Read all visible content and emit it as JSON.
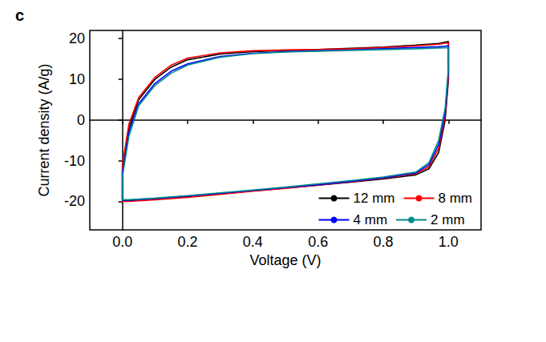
{
  "chart_data": {
    "type": "line",
    "panel_label": "c",
    "x_label": "Voltage (V)",
    "y_label": "Current density (A/g)",
    "xlim": [
      -0.1,
      1.1
    ],
    "xticks": [
      {
        "value": 0,
        "label": "0.0"
      },
      {
        "value": 0.2,
        "label": "0.2"
      },
      {
        "value": 0.4,
        "label": "0.4"
      },
      {
        "value": 0.6,
        "label": "0.6"
      },
      {
        "value": 0.8,
        "label": "0.8"
      },
      {
        "value": 1,
        "label": "1.0"
      }
    ],
    "ylim": [
      -27,
      22
    ],
    "yticks": [
      -20,
      -10,
      0,
      10,
      20
    ],
    "grid": false,
    "legend": "lower right",
    "series": [
      {
        "name": "12 mm",
        "color": "#000000",
        "x": [
          0,
          0.02,
          0.05,
          0.1,
          0.15,
          0.2,
          0.3,
          0.4,
          0.5,
          0.6,
          0.7,
          0.8,
          0.9,
          0.97,
          1,
          1,
          0.99,
          0.97,
          0.94,
          0.9,
          0.8,
          0.7,
          0.6,
          0.5,
          0.4,
          0.3,
          0.2,
          0.1,
          0.02,
          0,
          0
        ],
        "values": [
          -12,
          -2,
          5,
          10,
          13,
          14.8,
          16.2,
          16.8,
          17.1,
          17.3,
          17.6,
          17.9,
          18.4,
          18.8,
          19.3,
          10,
          0,
          -8,
          -12,
          -13.5,
          -14.5,
          -15.3,
          -16,
          -16.7,
          -17.4,
          -18.1,
          -18.8,
          -19.4,
          -19.8,
          -19.8,
          -12
        ]
      },
      {
        "name": "8 mm",
        "color": "#ff0000",
        "x": [
          0,
          0.02,
          0.05,
          0.1,
          0.15,
          0.2,
          0.3,
          0.4,
          0.5,
          0.6,
          0.7,
          0.8,
          0.9,
          0.97,
          1,
          1,
          0.99,
          0.97,
          0.94,
          0.9,
          0.8,
          0.7,
          0.6,
          0.5,
          0.4,
          0.3,
          0.2,
          0.1,
          0.02,
          0,
          0
        ],
        "values": [
          -11,
          -1,
          5.5,
          10.5,
          13.5,
          15.2,
          16.5,
          17,
          17.2,
          17.3,
          17.5,
          17.8,
          18.2,
          18.6,
          19,
          11,
          1,
          -7,
          -11.5,
          -13.2,
          -14.3,
          -15.2,
          -16,
          -16.8,
          -17.5,
          -18.3,
          -19,
          -19.6,
          -20,
          -20,
          -11
        ]
      },
      {
        "name": "4 mm",
        "color": "#0000ff",
        "x": [
          0,
          0.02,
          0.05,
          0.1,
          0.15,
          0.2,
          0.3,
          0.4,
          0.5,
          0.6,
          0.7,
          0.8,
          0.9,
          0.97,
          1,
          1,
          0.99,
          0.97,
          0.94,
          0.9,
          0.8,
          0.7,
          0.6,
          0.5,
          0.4,
          0.3,
          0.2,
          0.1,
          0.02,
          0,
          0
        ],
        "values": [
          -13,
          -3,
          4,
          9,
          12,
          13.8,
          15.6,
          16.4,
          16.8,
          17,
          17.2,
          17.5,
          17.8,
          18,
          18.2,
          12,
          2,
          -6,
          -11,
          -13,
          -14.2,
          -15.1,
          -15.9,
          -16.6,
          -17.3,
          -18,
          -18.7,
          -19.3,
          -19.7,
          -19.7,
          -13
        ]
      },
      {
        "name": "2 mm",
        "color": "#008b8b",
        "x": [
          0,
          0.02,
          0.05,
          0.1,
          0.15,
          0.2,
          0.3,
          0.4,
          0.5,
          0.6,
          0.7,
          0.8,
          0.9,
          0.97,
          1,
          1,
          0.99,
          0.97,
          0.94,
          0.9,
          0.8,
          0.7,
          0.6,
          0.5,
          0.4,
          0.3,
          0.2,
          0.1,
          0.02,
          0,
          0
        ],
        "values": [
          -14,
          -4,
          3.5,
          8.5,
          11.5,
          13.5,
          15.4,
          16.3,
          16.7,
          16.9,
          17.1,
          17.3,
          17.5,
          17.7,
          17.8,
          13,
          3,
          -5,
          -10.5,
          -12.8,
          -14,
          -14.9,
          -15.7,
          -16.5,
          -17.2,
          -17.9,
          -18.6,
          -19.2,
          -19.6,
          -19.6,
          -14
        ]
      }
    ]
  }
}
